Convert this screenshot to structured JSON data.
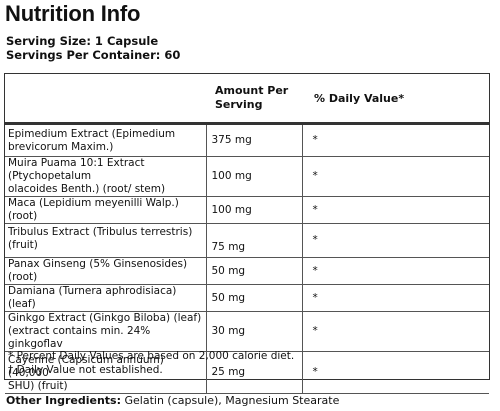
{
  "title": "Nutrition Info",
  "serving": {
    "size": "Serving Size: 1 Capsule",
    "per_container": "Servings Per Container: 60"
  },
  "table": {
    "headers": {
      "amount_line1": "Amount Per",
      "amount_line2": "Serving",
      "daily_value": "% Daily Value*"
    },
    "rows": [
      {
        "name_line1": "Epimedium Extract  (Epimedium",
        "name_line2": "brevicorum Maxim.)",
        "amount": "375 mg",
        "dv": "*"
      },
      {
        "name_line1": "Muira Puama 10:1 Extract (Ptychopetalum",
        "name_line2": "olacoides Benth.) (root/ stem)",
        "amount": "100 mg",
        "dv": "*"
      },
      {
        "name_line1": "Maca (Lepidium meyenilli Walp.) (root)",
        "name_line2": "",
        "amount": "100 mg",
        "dv": "*"
      },
      {
        "name_line1": "Tribulus Extract (Tribulus terrestris) (fruit)",
        "name_line2": "",
        "amount": "75 mg",
        "dv": "*"
      },
      {
        "name_line1": "Panax Ginseng (5% Ginsenosides) (root)",
        "name_line2": "",
        "amount": "50 mg",
        "dv": "*"
      },
      {
        "name_line1": "Damiana (Turnera aphrodisiaca) (leaf)",
        "name_line2": "",
        "amount": "50 mg",
        "dv": "*"
      },
      {
        "name_line1": "Ginkgo Extract (Ginkgo Biloba) (leaf)",
        "name_line2": "(extract contains min. 24% ginkgoflav",
        "amount": "30 mg",
        "dv": "*"
      },
      {
        "name_line1": "Cayenne (Capsicum annuum) (40,000",
        "name_line2": "SHU) (fruit)",
        "amount": "25 mg",
        "dv": "*"
      }
    ],
    "footnote1": "* Percent Daily Values are based on 2,000 calorie diet.",
    "footnote2": "† Daily Value not established."
  },
  "other_ingredients": {
    "label": "Other Ingredients:",
    "value": " Gelatin (capsule), Magnesium Stearate"
  }
}
